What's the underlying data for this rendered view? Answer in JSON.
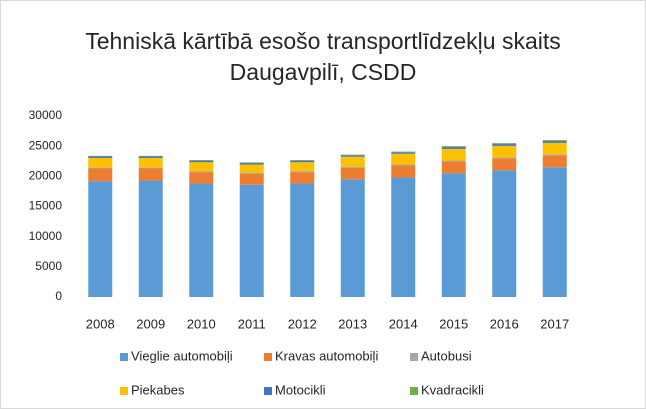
{
  "chart_data": {
    "type": "stacked_bar",
    "title": "Tehniskā kārtībā esošo transportlīdzekļu skaits Daugavpilī, CSDD",
    "categories": [
      "2008",
      "2009",
      "2010",
      "2011",
      "2012",
      "2013",
      "2014",
      "2015",
      "2016",
      "2017"
    ],
    "series": [
      {
        "name": "Vieglie automobiļi",
        "color": "#5b9bd5",
        "values": [
          19200,
          19300,
          18800,
          18600,
          18800,
          19500,
          19800,
          20500,
          21000,
          21500
        ]
      },
      {
        "name": "Kravas automobiļi",
        "color": "#ed7d31",
        "values": [
          2100,
          2000,
          1900,
          1800,
          1900,
          1900,
          2000,
          2000,
          2000,
          2000
        ]
      },
      {
        "name": "Autobusi",
        "color": "#a5a5a5",
        "values": [
          150,
          150,
          150,
          150,
          150,
          150,
          150,
          150,
          150,
          150
        ]
      },
      {
        "name": "Piekabes",
        "color": "#ffc000",
        "values": [
          1600,
          1600,
          1500,
          1400,
          1500,
          1700,
          1800,
          1900,
          1900,
          1900
        ]
      },
      {
        "name": "Motocikli",
        "color": "#4472c4",
        "values": [
          250,
          250,
          250,
          250,
          250,
          250,
          250,
          300,
          300,
          300
        ]
      },
      {
        "name": "Kvadracikli",
        "color": "#70ad47",
        "values": [
          100,
          100,
          100,
          100,
          100,
          100,
          100,
          150,
          150,
          150
        ]
      }
    ],
    "ylim": [
      0,
      30000
    ],
    "yticks": [
      0,
      5000,
      10000,
      15000,
      20000,
      25000,
      30000
    ],
    "grid": false
  }
}
